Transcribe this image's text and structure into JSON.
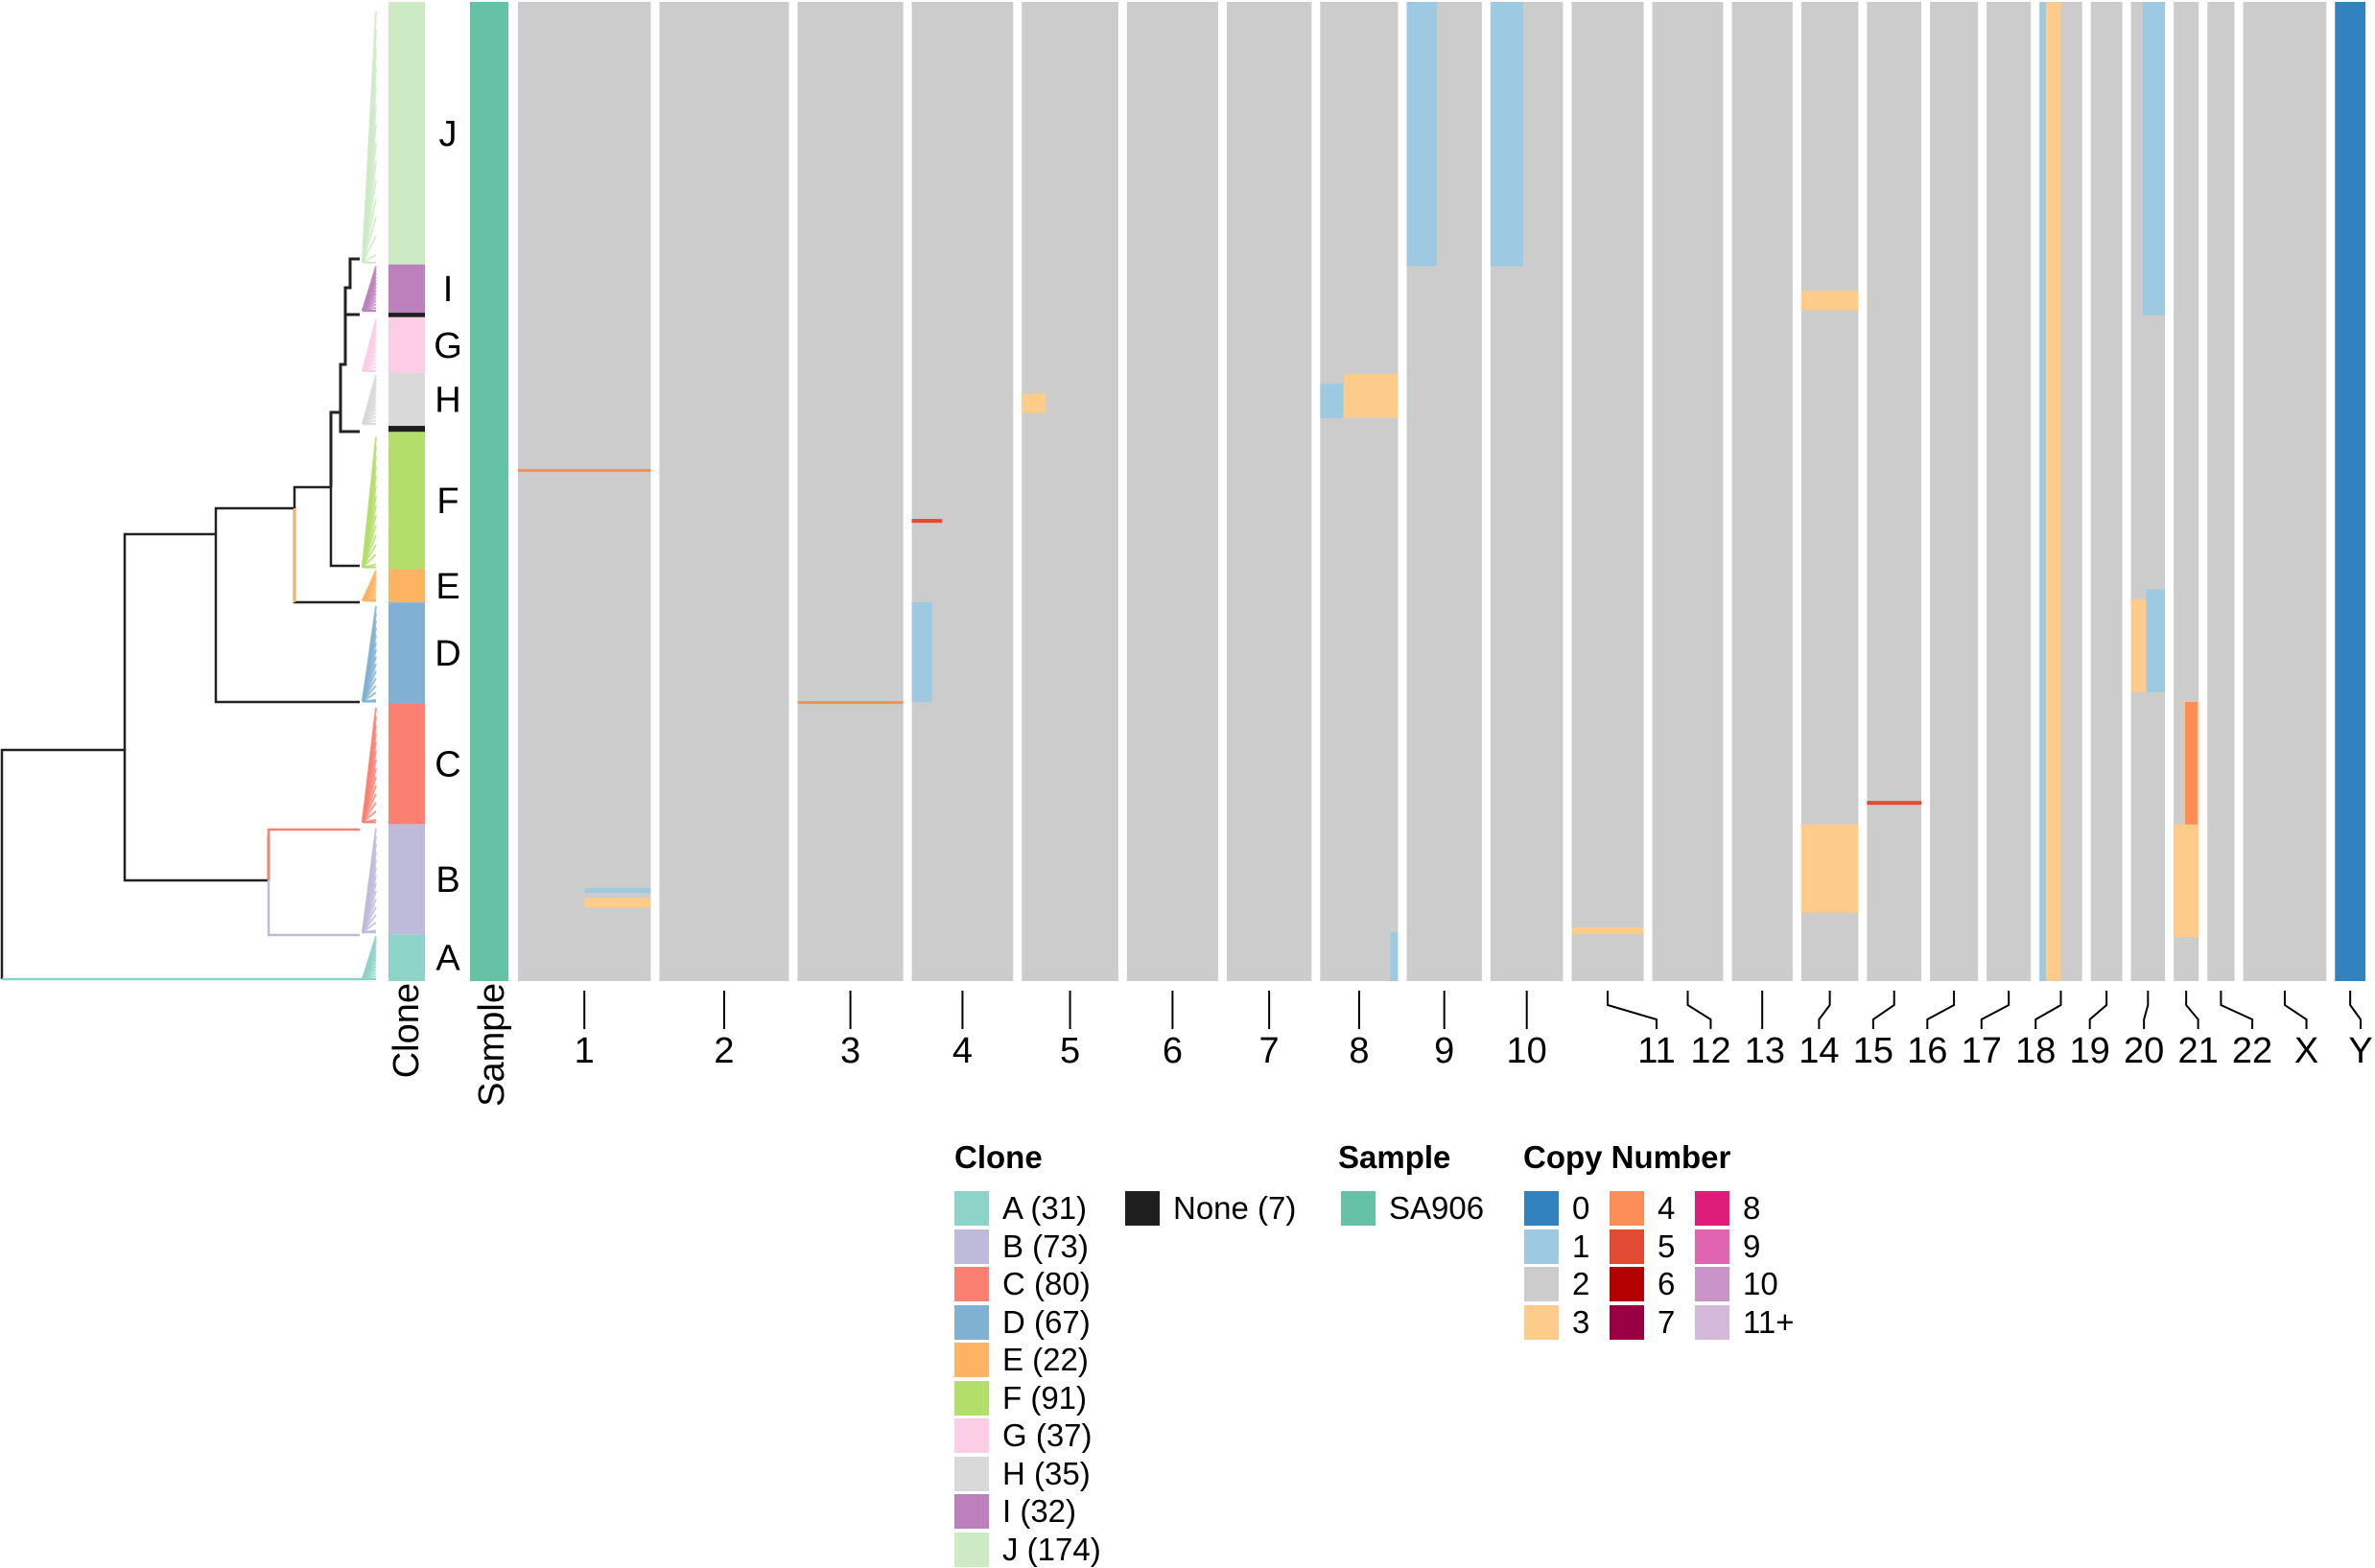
{
  "chart_data": {
    "type": "heatmap",
    "title": "",
    "annotation_columns": [
      {
        "name": "Clone",
        "label": "Clone"
      },
      {
        "name": "Sample",
        "label": "Sample"
      }
    ],
    "x_axis": {
      "label": "",
      "chromosomes": [
        "1",
        "2",
        "3",
        "4",
        "5",
        "6",
        "7",
        "8",
        "9",
        "10",
        "11",
        "12",
        "13",
        "14",
        "15",
        "16",
        "17",
        "18",
        "19",
        "20",
        "21",
        "22",
        "X",
        "Y"
      ],
      "relative_widths": [
        249,
        243,
        198,
        190,
        181,
        171,
        159,
        146,
        141,
        136,
        135,
        133,
        114,
        107,
        102,
        90,
        83,
        80,
        59,
        64,
        47,
        51,
        156,
        57
      ]
    },
    "clones": [
      {
        "id": "J",
        "label": "J",
        "count": 174,
        "color": "#CCEBC5"
      },
      {
        "id": "I",
        "label": "I",
        "count": 32,
        "color": "#BC80BD"
      },
      {
        "id": "None-1",
        "label": "",
        "count": 3,
        "color": "#1E1E1E"
      },
      {
        "id": "G",
        "label": "G",
        "count": 37,
        "color": "#FCCDE5"
      },
      {
        "id": "H",
        "label": "H",
        "count": 35,
        "color": "#D9D9D9"
      },
      {
        "id": "None-2",
        "label": "",
        "count": 4,
        "color": "#1E1E1E"
      },
      {
        "id": "F",
        "label": "F",
        "count": 91,
        "color": "#B3DE69"
      },
      {
        "id": "E",
        "label": "E",
        "count": 22,
        "color": "#FDB462"
      },
      {
        "id": "D",
        "label": "D",
        "count": 67,
        "color": "#80B1D3"
      },
      {
        "id": "C",
        "label": "C",
        "count": 80,
        "color": "#FB8072"
      },
      {
        "id": "B",
        "label": "B",
        "count": 73,
        "color": "#BEBADA"
      },
      {
        "id": "A",
        "label": "A",
        "count": 31,
        "color": "#8DD3C7"
      }
    ],
    "sample": {
      "name": "SA906",
      "color": "#66C2A5"
    },
    "copy_number_colors": {
      "0": "#3182BD",
      "1": "#9ECAE1",
      "2": "#CCCCCC",
      "3": "#FDCC8A",
      "4": "#FC8D59",
      "5": "#E34A33",
      "6": "#B30000",
      "7": "#980043",
      "8": "#DD1C77",
      "9": "#DF65B0",
      "10": "#C994C7",
      "11+": "#D4B9DA"
    },
    "background_copy_number": "2",
    "cn_blocks": [
      {
        "chr": "9",
        "from": 0.0,
        "to": 0.4,
        "row_from": 0.0,
        "row_to": 0.27,
        "cn": "1"
      },
      {
        "chr": "10",
        "from": 0.0,
        "to": 0.45,
        "row_from": 0.0,
        "row_to": 0.27,
        "cn": "1"
      },
      {
        "chr": "18",
        "from": 0.0,
        "to": 0.15,
        "row_from": 0.0,
        "row_to": 1.0,
        "cn": "1"
      },
      {
        "chr": "18",
        "from": 0.15,
        "to": 0.5,
        "row_from": 0.0,
        "row_to": 1.0,
        "cn": "3"
      },
      {
        "chr": "20",
        "from": 0.35,
        "to": 1.0,
        "row_from": 0.0,
        "row_to": 0.32,
        "cn": "1"
      },
      {
        "chr": "20",
        "from": 0.0,
        "to": 0.45,
        "row_from": 0.61,
        "row_to": 0.705,
        "cn": "3"
      },
      {
        "chr": "20",
        "from": 0.45,
        "to": 1.0,
        "row_from": 0.6,
        "row_to": 0.705,
        "cn": "1"
      },
      {
        "chr": "4",
        "from": 0.0,
        "to": 0.2,
        "row_from": 0.613,
        "row_to": 0.715,
        "cn": "1"
      },
      {
        "chr": "8",
        "from": 0.0,
        "to": 0.3,
        "row_from": 0.39,
        "row_to": 0.425,
        "cn": "1"
      },
      {
        "chr": "8",
        "from": 0.3,
        "to": 1.0,
        "row_from": 0.38,
        "row_to": 0.425,
        "cn": "3"
      },
      {
        "chr": "14",
        "from": 0.0,
        "to": 1.0,
        "row_from": 0.84,
        "row_to": 0.93,
        "cn": "3"
      },
      {
        "chr": "21",
        "from": 0.0,
        "to": 1.0,
        "row_from": 0.84,
        "row_to": 0.955,
        "cn": "3"
      },
      {
        "chr": "21",
        "from": 0.4,
        "to": 1.0,
        "row_from": 0.715,
        "row_to": 0.84,
        "cn": "3"
      },
      {
        "chr": "21",
        "from": 0.45,
        "to": 0.95,
        "row_from": 0.715,
        "row_to": 0.84,
        "cn": "4"
      },
      {
        "chr": "14",
        "from": 0.0,
        "to": 1.0,
        "row_from": 0.295,
        "row_to": 0.315,
        "cn": "3"
      },
      {
        "chr": "5",
        "from": 0.0,
        "to": 0.25,
        "row_from": 0.4,
        "row_to": 0.42,
        "cn": "3"
      },
      {
        "chr": "Y",
        "from": 0.0,
        "to": 1.0,
        "row_from": 0.0,
        "row_to": 1.0,
        "cn": "0"
      },
      {
        "chr": "1",
        "from": 0.0,
        "to": 1.0,
        "row_from": 0.477,
        "row_to": 0.48,
        "cn": "4"
      },
      {
        "chr": "3",
        "from": 0.0,
        "to": 1.0,
        "row_from": 0.714,
        "row_to": 0.717,
        "cn": "4"
      },
      {
        "chr": "8",
        "from": 0.9,
        "to": 1.0,
        "row_from": 0.95,
        "row_to": 1.0,
        "cn": "1"
      },
      {
        "chr": "1",
        "from": 0.5,
        "to": 1.0,
        "row_from": 0.915,
        "row_to": 0.925,
        "cn": "3"
      },
      {
        "chr": "1",
        "from": 0.5,
        "to": 1.0,
        "row_from": 0.905,
        "row_to": 0.91,
        "cn": "1"
      },
      {
        "chr": "11",
        "from": 0.0,
        "to": 1.0,
        "row_from": 0.945,
        "row_to": 0.952,
        "cn": "3"
      },
      {
        "chr": "15",
        "from": 0.0,
        "to": 1.0,
        "row_from": 0.816,
        "row_to": 0.82,
        "cn": "5"
      },
      {
        "chr": "4",
        "from": 0.0,
        "to": 0.3,
        "row_from": 0.528,
        "row_to": 0.532,
        "cn": "5"
      }
    ]
  },
  "legend": {
    "clone": {
      "title": "Clone",
      "items": [
        {
          "label": "A (31)",
          "color": "#8DD3C7"
        },
        {
          "label": "B (73)",
          "color": "#BEBADA"
        },
        {
          "label": "C (80)",
          "color": "#FB8072"
        },
        {
          "label": "D (67)",
          "color": "#80B1D3"
        },
        {
          "label": "E (22)",
          "color": "#FDB462"
        },
        {
          "label": "F (91)",
          "color": "#B3DE69"
        },
        {
          "label": "G (37)",
          "color": "#FCCDE5"
        },
        {
          "label": "H (35)",
          "color": "#D9D9D9"
        },
        {
          "label": "I (32)",
          "color": "#BC80BD"
        },
        {
          "label": "J (174)",
          "color": "#CCEBC5"
        }
      ],
      "none_item": {
        "label": "None (7)",
        "color": "#1E1E1E"
      }
    },
    "sample": {
      "title": "Sample",
      "items": [
        {
          "label": "SA906",
          "color": "#66C2A5"
        }
      ]
    },
    "copy_number": {
      "title": "Copy Number",
      "items": [
        {
          "label": "0",
          "color": "#3182BD"
        },
        {
          "label": "1",
          "color": "#9ECAE1"
        },
        {
          "label": "2",
          "color": "#CCCCCC"
        },
        {
          "label": "3",
          "color": "#FDCC8A"
        },
        {
          "label": "4",
          "color": "#FC8D59"
        },
        {
          "label": "5",
          "color": "#E34A33"
        },
        {
          "label": "6",
          "color": "#B30000"
        },
        {
          "label": "7",
          "color": "#980043"
        },
        {
          "label": "8",
          "color": "#DD1C77"
        },
        {
          "label": "9",
          "color": "#DF65B0"
        },
        {
          "label": "10",
          "color": "#C994C7"
        },
        {
          "label": "11+",
          "color": "#D4B9DA"
        }
      ]
    }
  },
  "axis_labels": {
    "clone": "Clone",
    "sample": "Sample"
  },
  "tree_colors": {
    "backbone": "#222222"
  }
}
